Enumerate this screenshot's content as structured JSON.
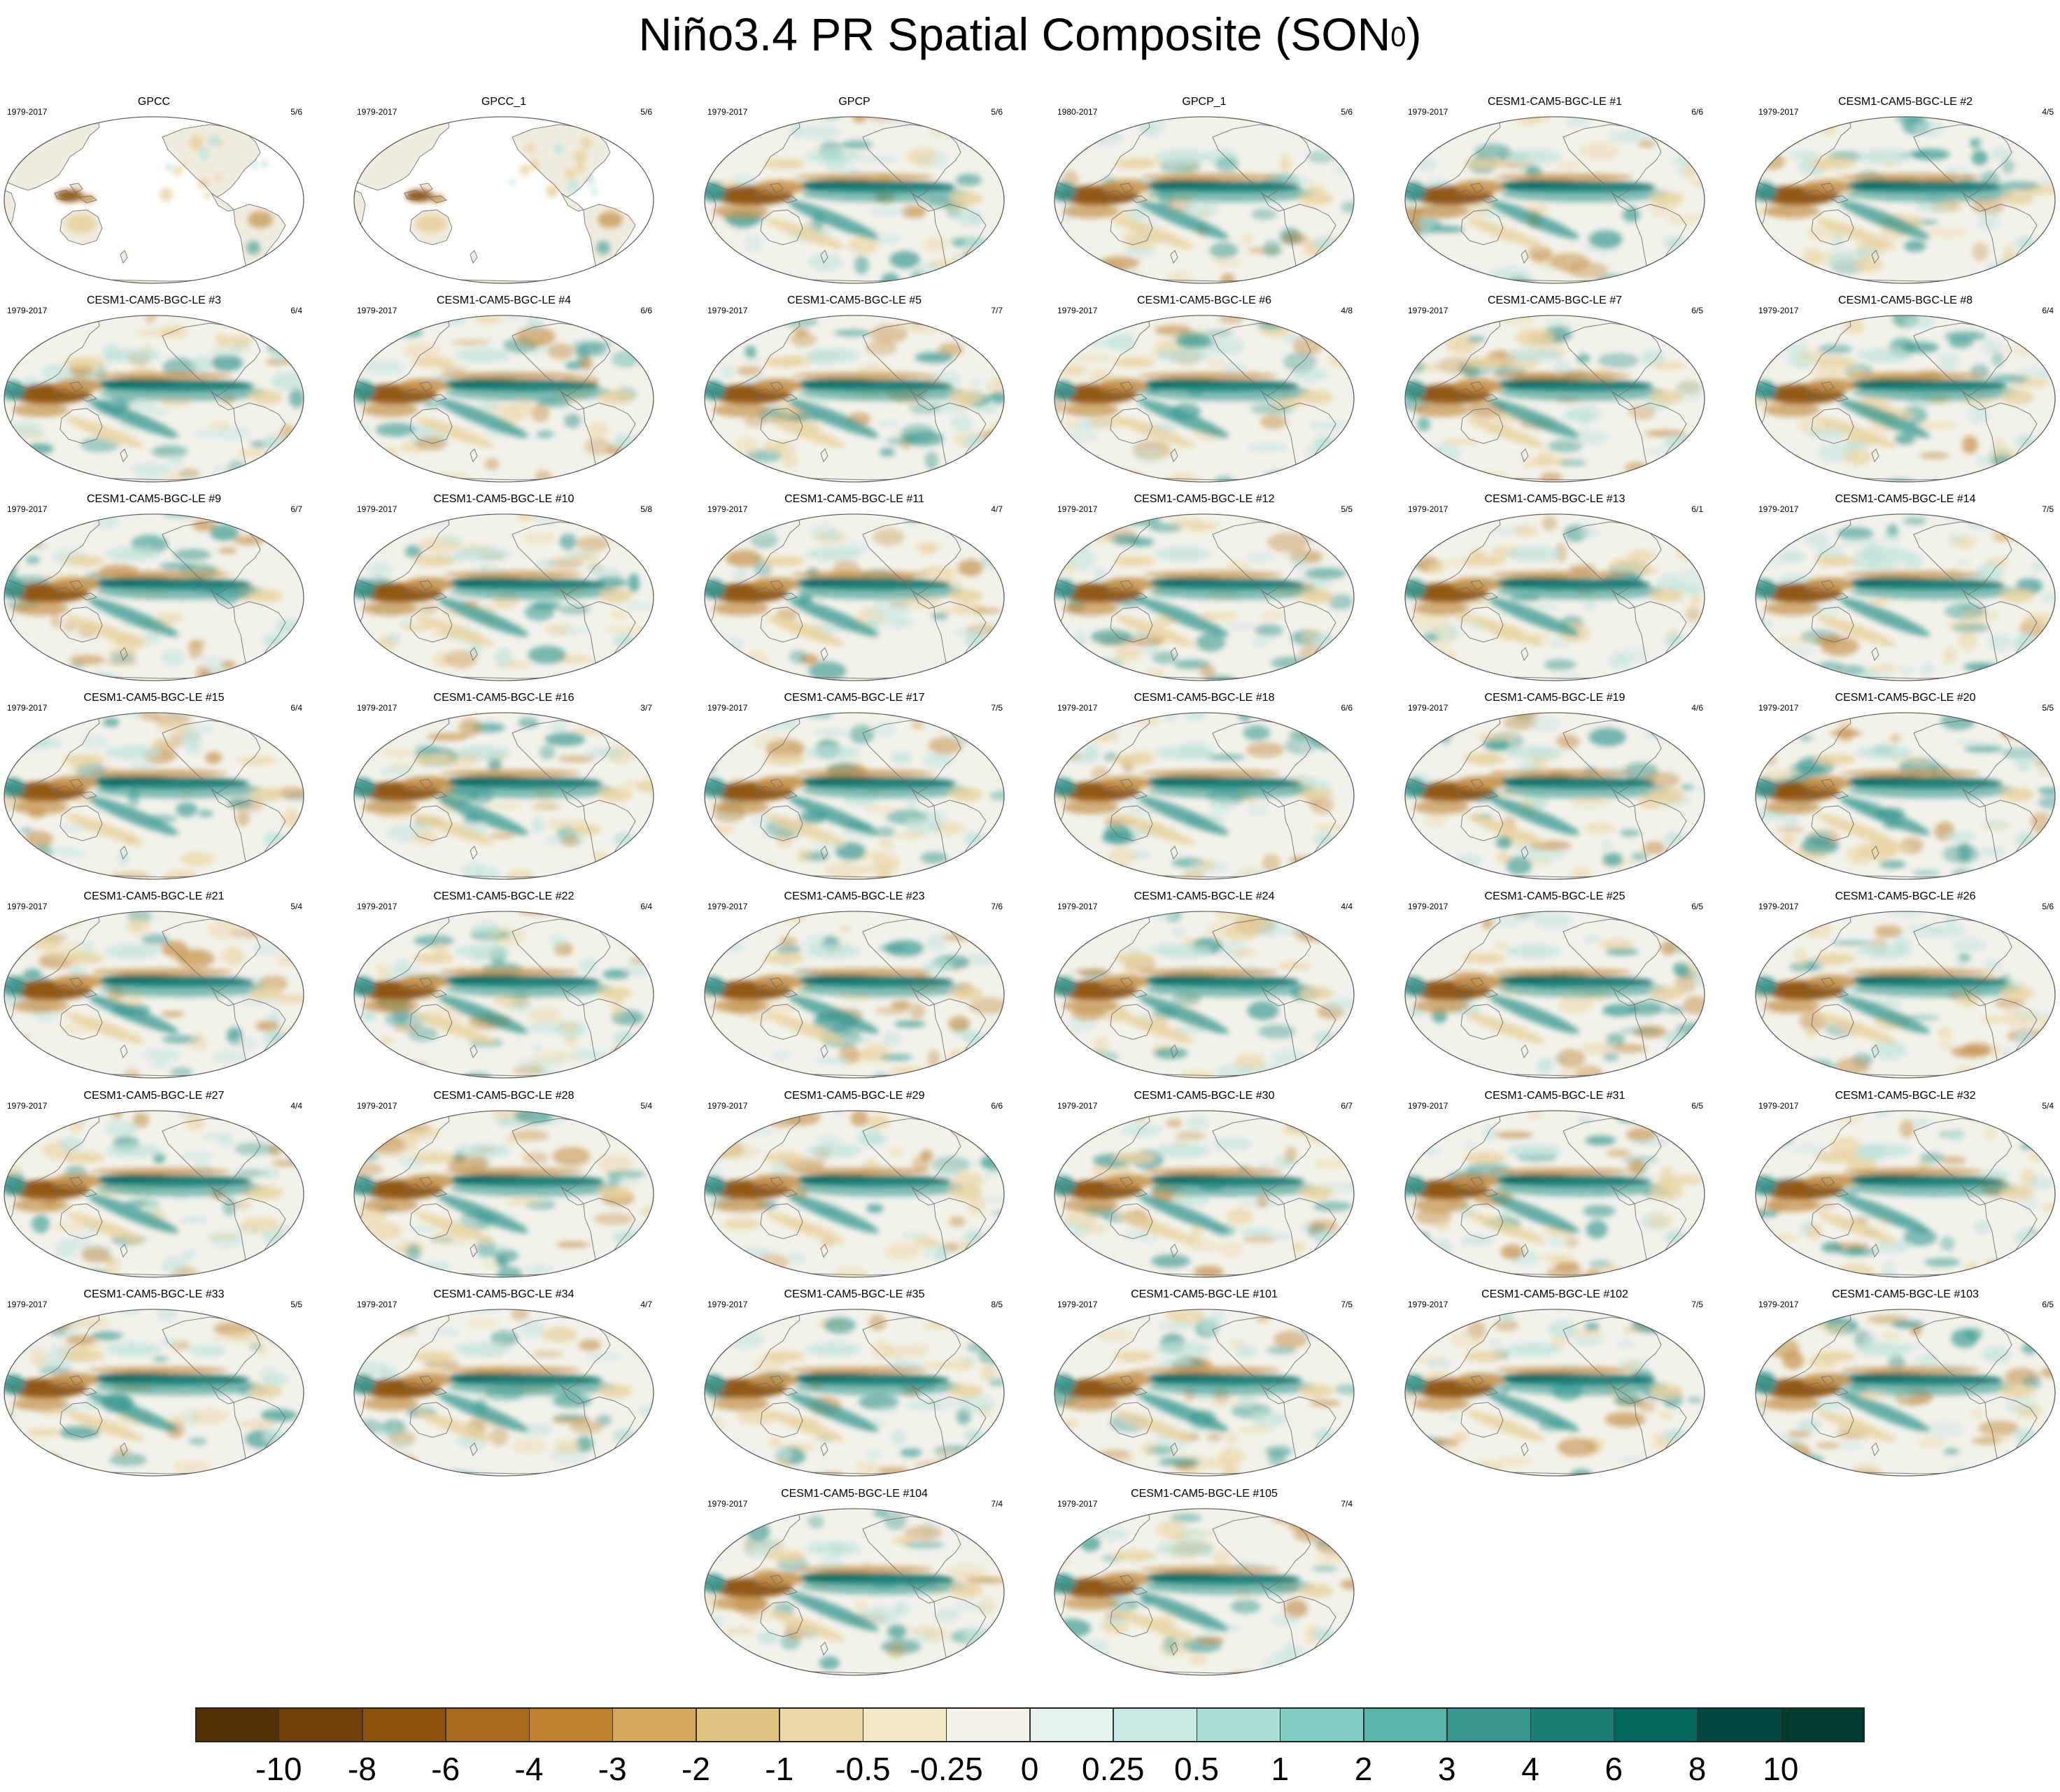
{
  "title_main": "Niño3.4 PR Spatial Composite (SON",
  "title_sup": "0",
  "title_close": ")",
  "chart_data": {
    "type": "heatmap",
    "title": "Niño3.4 PR Spatial Composite (SON0)",
    "panels": [
      {
        "name": "GPCC",
        "years": "1979-2017",
        "count": "5/6",
        "land_only": true
      },
      {
        "name": "GPCC_1",
        "years": "1979-2017",
        "count": "5/6",
        "land_only": true
      },
      {
        "name": "GPCP",
        "years": "1979-2017",
        "count": "5/6"
      },
      {
        "name": "GPCP_1",
        "years": "1980-2017",
        "count": "5/6"
      },
      {
        "name": "CESM1-CAM5-BGC-LE #1",
        "years": "1979-2017",
        "count": "6/6"
      },
      {
        "name": "CESM1-CAM5-BGC-LE #2",
        "years": "1979-2017",
        "count": "4/5"
      },
      {
        "name": "CESM1-CAM5-BGC-LE #3",
        "years": "1979-2017",
        "count": "6/4"
      },
      {
        "name": "CESM1-CAM5-BGC-LE #4",
        "years": "1979-2017",
        "count": "6/6"
      },
      {
        "name": "CESM1-CAM5-BGC-LE #5",
        "years": "1979-2017",
        "count": "7/7"
      },
      {
        "name": "CESM1-CAM5-BGC-LE #6",
        "years": "1979-2017",
        "count": "4/8"
      },
      {
        "name": "CESM1-CAM5-BGC-LE #7",
        "years": "1979-2017",
        "count": "6/5"
      },
      {
        "name": "CESM1-CAM5-BGC-LE #8",
        "years": "1979-2017",
        "count": "6/4"
      },
      {
        "name": "CESM1-CAM5-BGC-LE #9",
        "years": "1979-2017",
        "count": "6/7"
      },
      {
        "name": "CESM1-CAM5-BGC-LE #10",
        "years": "1979-2017",
        "count": "5/8"
      },
      {
        "name": "CESM1-CAM5-BGC-LE #11",
        "years": "1979-2017",
        "count": "4/7"
      },
      {
        "name": "CESM1-CAM5-BGC-LE #12",
        "years": "1979-2017",
        "count": "5/5"
      },
      {
        "name": "CESM1-CAM5-BGC-LE #13",
        "years": "1979-2017",
        "count": "6/1"
      },
      {
        "name": "CESM1-CAM5-BGC-LE #14",
        "years": "1979-2017",
        "count": "7/5"
      },
      {
        "name": "CESM1-CAM5-BGC-LE #15",
        "years": "1979-2017",
        "count": "6/4"
      },
      {
        "name": "CESM1-CAM5-BGC-LE #16",
        "years": "1979-2017",
        "count": "3/7"
      },
      {
        "name": "CESM1-CAM5-BGC-LE #17",
        "years": "1979-2017",
        "count": "7/5"
      },
      {
        "name": "CESM1-CAM5-BGC-LE #18",
        "years": "1979-2017",
        "count": "6/6"
      },
      {
        "name": "CESM1-CAM5-BGC-LE #19",
        "years": "1979-2017",
        "count": "4/6"
      },
      {
        "name": "CESM1-CAM5-BGC-LE #20",
        "years": "1979-2017",
        "count": "5/5"
      },
      {
        "name": "CESM1-CAM5-BGC-LE #21",
        "years": "1979-2017",
        "count": "5/4"
      },
      {
        "name": "CESM1-CAM5-BGC-LE #22",
        "years": "1979-2017",
        "count": "6/4"
      },
      {
        "name": "CESM1-CAM5-BGC-LE #23",
        "years": "1979-2017",
        "count": "7/6"
      },
      {
        "name": "CESM1-CAM5-BGC-LE #24",
        "years": "1979-2017",
        "count": "4/4"
      },
      {
        "name": "CESM1-CAM5-BGC-LE #25",
        "years": "1979-2017",
        "count": "6/5"
      },
      {
        "name": "CESM1-CAM5-BGC-LE #26",
        "years": "1979-2017",
        "count": "5/6"
      },
      {
        "name": "CESM1-CAM5-BGC-LE #27",
        "years": "1979-2017",
        "count": "4/4"
      },
      {
        "name": "CESM1-CAM5-BGC-LE #28",
        "years": "1979-2017",
        "count": "5/4"
      },
      {
        "name": "CESM1-CAM5-BGC-LE #29",
        "years": "1979-2017",
        "count": "6/6"
      },
      {
        "name": "CESM1-CAM5-BGC-LE #30",
        "years": "1979-2017",
        "count": "6/7"
      },
      {
        "name": "CESM1-CAM5-BGC-LE #31",
        "years": "1979-2017",
        "count": "6/5"
      },
      {
        "name": "CESM1-CAM5-BGC-LE #32",
        "years": "1979-2017",
        "count": "5/4"
      },
      {
        "name": "CESM1-CAM5-BGC-LE #33",
        "years": "1979-2017",
        "count": "5/5"
      },
      {
        "name": "CESM1-CAM5-BGC-LE #34",
        "years": "1979-2017",
        "count": "4/7"
      },
      {
        "name": "CESM1-CAM5-BGC-LE #35",
        "years": "1979-2017",
        "count": "8/5"
      },
      {
        "name": "CESM1-CAM5-BGC-LE #101",
        "years": "1979-2017",
        "count": "7/5"
      },
      {
        "name": "CESM1-CAM5-BGC-LE #102",
        "years": "1979-2017",
        "count": "7/5"
      },
      {
        "name": "CESM1-CAM5-BGC-LE #103",
        "years": "1979-2017",
        "count": "6/5"
      },
      {
        "name": "CESM1-CAM5-BGC-LE #104",
        "years": "1979-2017",
        "count": "7/4"
      },
      {
        "name": "CESM1-CAM5-BGC-LE #105",
        "years": "1979-2017",
        "count": "7/4"
      }
    ],
    "colorbar": {
      "labels": [
        "-10",
        "-8",
        "-6",
        "-4",
        "-3",
        "-2",
        "-1",
        "-0.5",
        "-0.25",
        "0",
        "0.25",
        "0.5",
        "1",
        "2",
        "3",
        "4",
        "6",
        "8",
        "10"
      ],
      "colors": [
        "#543005",
        "#714009",
        "#8c510a",
        "#a86b1c",
        "#bf812d",
        "#d4a65e",
        "#dfc27d",
        "#eed9a6",
        "#f4e9c5",
        "#f5f1e8",
        "#e6f2ee",
        "#c7eae5",
        "#a6ddd4",
        "#80cdc1",
        "#5ab4a7",
        "#35978f",
        "#1b7e74",
        "#01665e",
        "#01483f",
        "#003c30"
      ]
    },
    "map_colors": {
      "ocean_base": "#f3f2ea",
      "dry_dark": "#8c510a",
      "dry_mid": "#c4904a",
      "dry_light": "#e9d3a0",
      "wet_dark": "#01665e",
      "wet_mid": "#35978f",
      "wet_light": "#bfe3dc",
      "coast": "#6c6c6c",
      "frame": "#555555"
    }
  }
}
